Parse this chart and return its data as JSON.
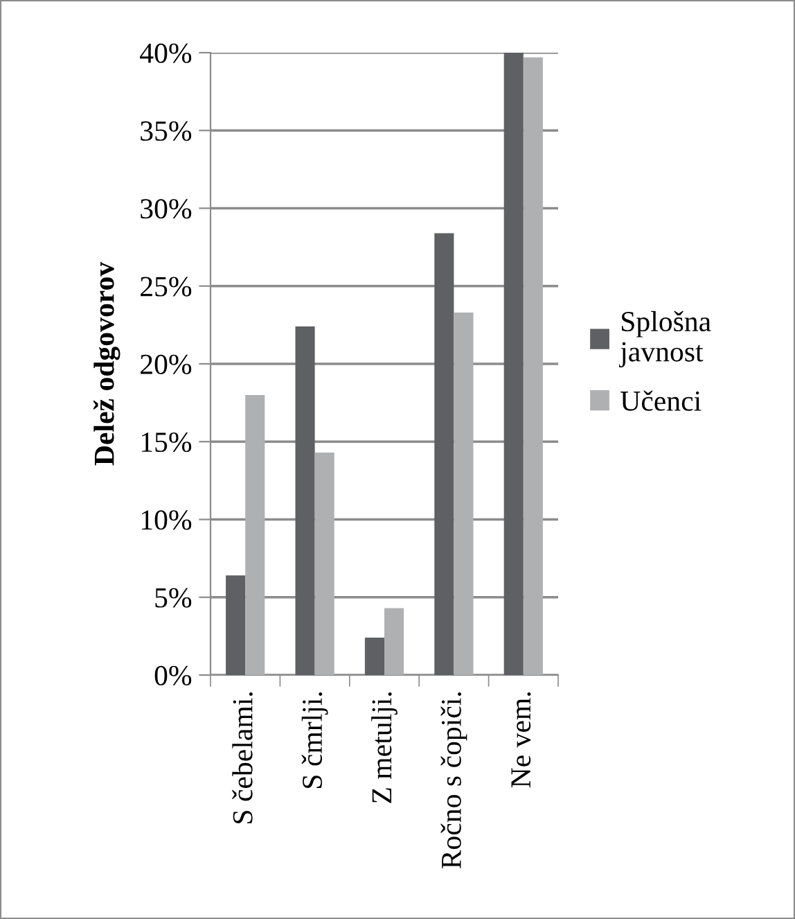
{
  "chart_data": {
    "type": "bar",
    "ylabel": "Delež odgovorov",
    "categories": [
      "S čebelami.",
      "S čmrlji.",
      "Z metulji.",
      "Ročno s čopiči.",
      "Ne vem."
    ],
    "series": [
      {
        "name": "Splošna javnost",
        "color": "#5f6063",
        "values": [
          6.4,
          22.4,
          2.4,
          28.4,
          40
        ]
      },
      {
        "name": "Učenci",
        "color": "#afb0b2",
        "values": [
          18.0,
          14.3,
          4.3,
          23.3,
          39.7
        ]
      }
    ],
    "ylim": [
      0,
      40
    ],
    "yticks": [
      {
        "value": 0,
        "label": "0%"
      },
      {
        "value": 5,
        "label": "5%"
      },
      {
        "value": 10,
        "label": "10%"
      },
      {
        "value": 15,
        "label": "15%"
      },
      {
        "value": 20,
        "label": "20%"
      },
      {
        "value": 25,
        "label": "25%"
      },
      {
        "value": 30,
        "label": "30%"
      },
      {
        "value": 35,
        "label": "35%"
      },
      {
        "value": 40,
        "label": "40%"
      }
    ],
    "grid": "y",
    "legend": "right"
  }
}
